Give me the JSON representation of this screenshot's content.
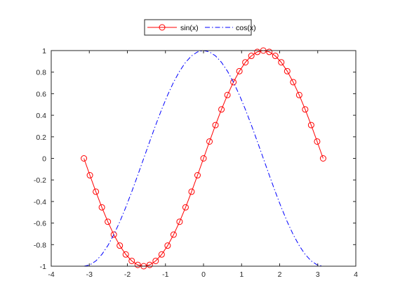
{
  "chart_data": {
    "type": "line",
    "title": "",
    "xlabel": "",
    "ylabel": "",
    "xlim": [
      -4,
      4
    ],
    "ylim": [
      -1,
      1
    ],
    "grid": false,
    "box": true,
    "legend_placement": "top-center",
    "xticks": [
      -4,
      -3,
      -2,
      -1,
      0,
      1,
      2,
      3,
      4
    ],
    "xtick_labels": [
      "-4",
      "-3",
      "-2",
      "-1",
      "0",
      "1",
      "2",
      "3",
      "4"
    ],
    "yticks": [
      -1,
      -0.8,
      -0.6,
      -0.4,
      -0.2,
      0,
      0.2,
      0.4,
      0.6,
      0.8,
      1
    ],
    "ytick_labels": [
      "-1",
      "-0.8",
      "-0.6",
      "-0.4",
      "-0.2",
      "0",
      "0.2",
      "0.4",
      "0.6",
      "0.8",
      "1"
    ],
    "series": [
      {
        "name": "sin(x)",
        "color": "#ff0000",
        "line_style": "solid",
        "marker": "circle",
        "x": [
          -3.1416,
          -2.9845,
          -2.8274,
          -2.6704,
          -2.5133,
          -2.3562,
          -2.1991,
          -2.042,
          -1.885,
          -1.7279,
          -1.5708,
          -1.4137,
          -1.2566,
          -1.0996,
          -0.9425,
          -0.7854,
          -0.6283,
          -0.4712,
          -0.3142,
          -0.1571,
          0,
          0.1571,
          0.3142,
          0.4712,
          0.6283,
          0.7854,
          0.9425,
          1.0996,
          1.2566,
          1.4137,
          1.5708,
          1.7279,
          1.885,
          2.042,
          2.1991,
          2.3562,
          2.5133,
          2.6704,
          2.8274,
          2.9845,
          3.1416
        ],
        "y": [
          0,
          -0.1564,
          -0.309,
          -0.454,
          -0.5878,
          -0.7071,
          -0.809,
          -0.891,
          -0.9511,
          -0.9877,
          -1,
          -0.9877,
          -0.9511,
          -0.891,
          -0.809,
          -0.7071,
          -0.5878,
          -0.454,
          -0.309,
          -0.1564,
          0,
          0.1564,
          0.309,
          0.454,
          0.5878,
          0.7071,
          0.809,
          0.891,
          0.9511,
          0.9877,
          1,
          0.9877,
          0.9511,
          0.891,
          0.809,
          0.7071,
          0.5878,
          0.454,
          0.309,
          0.1564,
          0
        ]
      },
      {
        "name": "cos(x)",
        "color": "#0000ff",
        "line_style": "dash-dot",
        "marker": "none",
        "x": [
          -3.1416,
          -2.9845,
          -2.8274,
          -2.6704,
          -2.5133,
          -2.3562,
          -2.1991,
          -2.042,
          -1.885,
          -1.7279,
          -1.5708,
          -1.4137,
          -1.2566,
          -1.0996,
          -0.9425,
          -0.7854,
          -0.6283,
          -0.4712,
          -0.3142,
          -0.1571,
          0,
          0.1571,
          0.3142,
          0.4712,
          0.6283,
          0.7854,
          0.9425,
          1.0996,
          1.2566,
          1.4137,
          1.5708,
          1.7279,
          1.885,
          2.042,
          2.1991,
          2.3562,
          2.5133,
          2.6704,
          2.8274,
          2.9845,
          3.1416
        ],
        "y": [
          -1,
          -0.9877,
          -0.9511,
          -0.891,
          -0.809,
          -0.7071,
          -0.5878,
          -0.454,
          -0.309,
          -0.1564,
          0,
          0.1564,
          0.309,
          0.454,
          0.5878,
          0.7071,
          0.809,
          0.891,
          0.9511,
          0.9877,
          1,
          0.9877,
          0.9511,
          0.891,
          0.809,
          0.7071,
          0.5878,
          0.454,
          0.309,
          0.1564,
          0,
          -0.1564,
          -0.309,
          -0.454,
          -0.5878,
          -0.7071,
          -0.809,
          -0.891,
          -0.9511,
          -0.9877,
          -1
        ]
      }
    ]
  }
}
